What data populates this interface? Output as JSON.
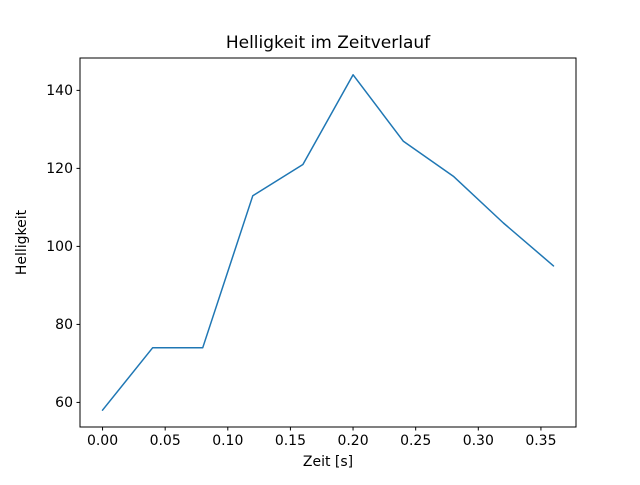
{
  "chart_data": {
    "type": "line",
    "title": "Helligkeit im Zeitverlauf",
    "xlabel": "Zeit [s]",
    "ylabel": "Helligkeit",
    "x": [
      0.0,
      0.04,
      0.08,
      0.12,
      0.16,
      0.2,
      0.24,
      0.28,
      0.32,
      0.36
    ],
    "y": [
      58,
      74,
      74,
      113,
      121,
      144,
      127,
      118,
      106,
      95
    ],
    "xticks": [
      0.0,
      0.05,
      0.1,
      0.15,
      0.2,
      0.25,
      0.3,
      0.35
    ],
    "xtick_labels": [
      "0.00",
      "0.05",
      "0.10",
      "0.15",
      "0.20",
      "0.25",
      "0.30",
      "0.35"
    ],
    "yticks": [
      60,
      80,
      100,
      120,
      140
    ],
    "ytick_labels": [
      "60",
      "80",
      "100",
      "120",
      "140"
    ],
    "xlim": [
      -0.018,
      0.378
    ],
    "ylim": [
      53.7,
      148.3
    ],
    "grid": false,
    "legend_position": "none",
    "line_color": "#1f77b4",
    "line_width": 1.5,
    "spine_color": "#000000",
    "background": "#ffffff"
  }
}
